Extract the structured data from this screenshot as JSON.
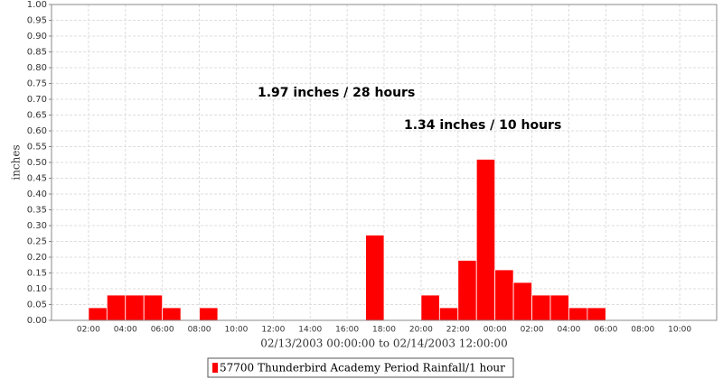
{
  "chart_data": {
    "type": "bar",
    "x_label": "02/13/2003 00:00:00 to 02/14/2003 12:00:00",
    "y_label": "inches",
    "annotations": [
      "1.97 inches / 28 hours",
      "1.34 inches / 10 hours"
    ],
    "categories": [
      null,
      null,
      "02:00",
      null,
      "04:00",
      null,
      "06:00",
      null,
      "08:00",
      null,
      "10:00",
      null,
      "12:00",
      null,
      "14:00",
      null,
      "16:00",
      null,
      "18:00",
      null,
      "20:00",
      null,
      "22:00",
      null,
      "00:00",
      null,
      "02:00",
      null,
      "04:00",
      null,
      "06:00",
      null,
      "08:00",
      null,
      "10:00",
      null
    ],
    "series": [
      {
        "name": "57700 Thunderbird Academy Period Rainfall/1 hour",
        "color": "#ff0000",
        "values": [
          0,
          0,
          0.04,
          0.08,
          0.08,
          0.08,
          0.04,
          0,
          0.04,
          0,
          0,
          0,
          0,
          0,
          0,
          0,
          0,
          0.27,
          0,
          0,
          0.08,
          0.04,
          0.19,
          0.51,
          0.16,
          0.12,
          0.08,
          0.08,
          0.04,
          0.04,
          0,
          0,
          0,
          0,
          0,
          0
        ]
      }
    ],
    "ylim": [
      0,
      1
    ],
    "yticks": [
      {
        "value": 0,
        "label": "0.00"
      },
      {
        "value": 0.05,
        "label": "0.05"
      },
      {
        "value": 0.1,
        "label": "0.10"
      },
      {
        "value": 0.15,
        "label": "0.15"
      },
      {
        "value": 0.2,
        "label": "0.20"
      },
      {
        "value": 0.25,
        "label": "0.25"
      },
      {
        "value": 0.3,
        "label": "0.30"
      },
      {
        "value": 0.35,
        "label": "0.35"
      },
      {
        "value": 0.4,
        "label": "0.40"
      },
      {
        "value": 0.45,
        "label": "0.45"
      },
      {
        "value": 0.5,
        "label": "0.50"
      },
      {
        "value": 0.55,
        "label": "0.55"
      },
      {
        "value": 0.6,
        "label": "0.60"
      },
      {
        "value": 0.65,
        "label": "0.65"
      },
      {
        "value": 0.7,
        "label": "0.70"
      },
      {
        "value": 0.75,
        "label": "0.75"
      },
      {
        "value": 0.8,
        "label": "0.80"
      },
      {
        "value": 0.85,
        "label": "0.85"
      },
      {
        "value": 0.9,
        "label": "0.90"
      },
      {
        "value": 0.95,
        "label": "0.95"
      },
      {
        "value": 1,
        "label": "1.00"
      }
    ],
    "grid": true
  }
}
